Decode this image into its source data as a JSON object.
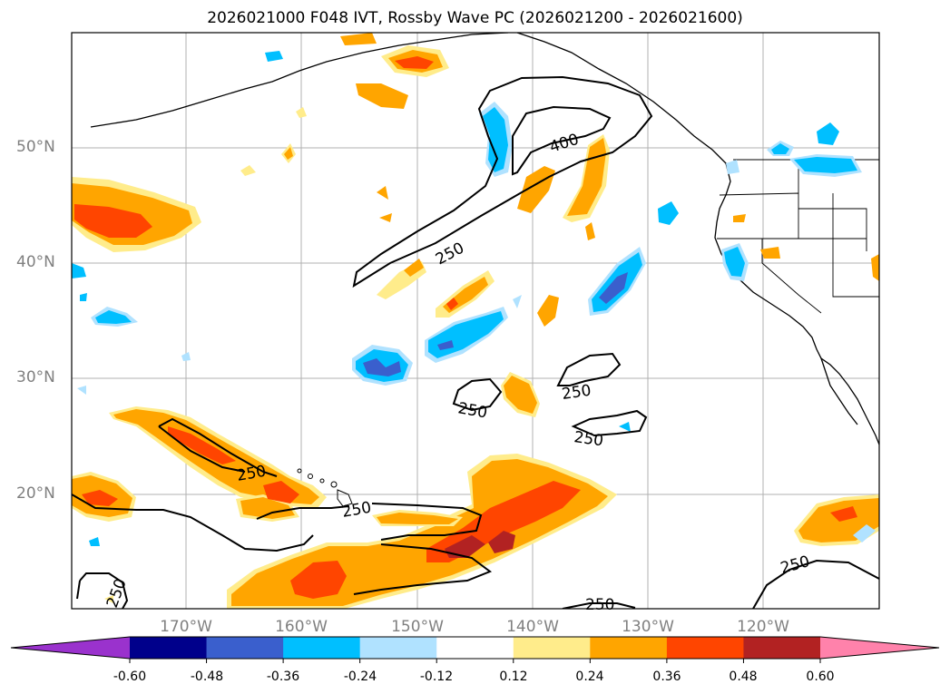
{
  "title": "2026021000 F048 IVT, Rossby Wave PC (2026021200 - 2026021600)",
  "lat_ticks": [
    "50°N",
    "40°N",
    "30°N",
    "20°N"
  ],
  "lon_ticks": [
    "170°W",
    "160°W",
    "150°W",
    "140°W",
    "130°W",
    "120°W"
  ],
  "colorbar": {
    "labels": [
      "-0.60",
      "-0.48",
      "-0.36",
      "-0.24",
      "-0.12",
      "0.12",
      "0.24",
      "0.36",
      "0.48",
      "0.60"
    ],
    "colors": [
      "#9a32cd",
      "#00008b",
      "#3a5fcd",
      "#00bfff",
      "#b0e2ff",
      "#ffffff",
      "#ffec8b",
      "#ffa500",
      "#ff4500",
      "#b22222",
      "#ff82ab"
    ]
  },
  "contour_labels": [
    "400",
    "250",
    "250",
    "250",
    "250",
    "250",
    "250",
    "250",
    "250",
    "250"
  ],
  "colors": {
    "orange": "#ffa500",
    "red": "#ff4500",
    "darkred": "#b22222",
    "lightyellow": "#ffec8b",
    "cyan": "#00bfff",
    "lightblue": "#b0e2ff",
    "blue": "#3a5fcd"
  }
}
